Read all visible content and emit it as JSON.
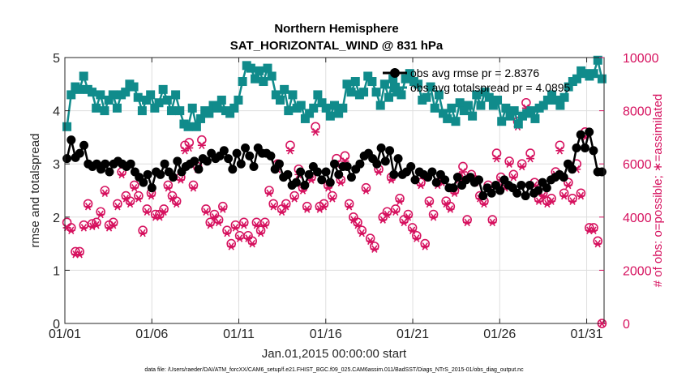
{
  "chart_data": {
    "type": "line",
    "title": "Northern Hemisphere",
    "subtitle": "SAT_HORIZONTAL_WIND @ 831 hPa",
    "xlabel": "Jan.01,2015 00:00:00 start",
    "ylabel": "rmse and totalspread",
    "y2label": "# of obs: o=possible; ∗=assimilated",
    "xlim": [
      0,
      31
    ],
    "ylim": [
      0,
      5
    ],
    "y2lim": [
      0,
      10000
    ],
    "x_tick_values": [
      0,
      5,
      10,
      15,
      20,
      25,
      30
    ],
    "x_tick_labels": [
      "01/01",
      "01/06",
      "01/11",
      "01/16",
      "01/21",
      "01/26",
      "01/31"
    ],
    "y_ticks": [
      "0",
      "1",
      "2",
      "3",
      "4",
      "5"
    ],
    "y2_ticks": [
      "0",
      "2000",
      "4000",
      "6000",
      "8000",
      "10000"
    ],
    "legend_location": "top-right",
    "footnote": "data file: /Users/raeder/DAI/ATM_forcXX/CAM6_setup/f.e21.FHIST_BGC.f09_025.CAM6assim.011/BadSST/Diags_NTrS_2015-01/obs_diag_output.nc",
    "colors": {
      "rmse": "#000000",
      "spread": "#108b8b",
      "obs": "#d6125f"
    },
    "series": [
      {
        "name": "obs avg rmse pr = 2.8376",
        "axis": "left",
        "values": [
          3.1,
          3.45,
          3.12,
          3.2,
          3.35,
          3.0,
          2.95,
          3.0,
          2.9,
          3.0,
          2.85,
          3.0,
          3.05,
          3.0,
          2.95,
          3.0,
          2.85,
          2.75,
          2.65,
          2.8,
          2.55,
          2.85,
          2.8,
          3.0,
          2.85,
          2.75,
          3.05,
          2.85,
          2.95,
          3.0,
          3.05,
          2.9,
          3.1,
          3.05,
          3.2,
          3.1,
          3.15,
          3.25,
          3.1,
          2.9,
          3.2,
          3.0,
          3.3,
          3.15,
          2.95,
          3.3,
          3.2,
          3.2,
          3.15,
          2.9,
          3.0,
          2.75,
          2.8,
          2.6,
          2.65,
          2.85,
          2.6,
          2.8,
          2.95,
          2.85,
          2.7,
          2.85,
          2.65,
          3.0,
          2.8,
          2.95,
          2.95,
          2.75,
          2.9,
          3.0,
          3.15,
          3.2,
          3.1,
          3.0,
          3.3,
          3.05,
          3.25,
          2.8,
          3.1,
          2.8,
          2.85,
          2.95,
          2.7,
          2.85,
          2.8,
          2.75,
          2.85,
          2.65,
          2.8,
          2.7,
          2.55,
          2.55,
          2.75,
          2.6,
          2.7,
          2.75,
          2.65,
          2.7,
          2.4,
          2.55,
          2.45,
          2.6,
          2.5,
          2.7,
          2.6,
          2.55,
          2.45,
          2.6,
          2.4,
          2.6,
          2.45,
          2.5,
          2.65,
          2.55,
          2.7,
          2.75,
          2.8,
          2.75,
          3.0,
          2.9,
          3.3,
          3.55,
          3.3,
          3.6,
          3.25,
          2.85,
          2.85
        ]
      },
      {
        "name": "obs avg totalspread pr = 4.0895",
        "axis": "left",
        "values": [
          3.7,
          4.3,
          4.45,
          4.4,
          4.65,
          4.4,
          4.35,
          4.05,
          4.3,
          4.0,
          4.2,
          4.3,
          4.05,
          4.3,
          4.35,
          4.5,
          4.45,
          4.25,
          4.0,
          4.2,
          4.3,
          4.05,
          4.15,
          4.4,
          4.2,
          4.0,
          4.3,
          4.0,
          3.75,
          3.7,
          4.05,
          3.7,
          3.85,
          4.0,
          3.95,
          4.1,
          4.05,
          4.2,
          4.0,
          3.95,
          4.05,
          4.2,
          4.55,
          4.85,
          4.8,
          4.6,
          4.75,
          4.55,
          4.8,
          4.65,
          4.3,
          4.2,
          4.4,
          4.0,
          4.3,
          4.05,
          4.1,
          3.85,
          3.95,
          4.05,
          4.3,
          4.15,
          4.05,
          3.9,
          4.1,
          3.95,
          4.05,
          4.5,
          4.35,
          4.55,
          4.3,
          4.35,
          4.65,
          4.55,
          4.35,
          4.1,
          4.5,
          4.25,
          4.6,
          4.35,
          4.3,
          4.6,
          4.7,
          4.55,
          4.5,
          4.2,
          4.25,
          4.45,
          4.05,
          4.3,
          3.95,
          3.85,
          4.05,
          3.8,
          4.15,
          4.0,
          4.1,
          3.9,
          4.3,
          4.1,
          4.35,
          4.25,
          4.1,
          4.2,
          3.8,
          4.05,
          3.9,
          4.0,
          3.75,
          3.9,
          3.95,
          4.0,
          3.85,
          4.05,
          4.1,
          4.2,
          4.3,
          4.2,
          4.1,
          4.25,
          4.45,
          4.55,
          4.6,
          4.75,
          4.7,
          4.65,
          4.7,
          4.95,
          4.6
        ]
      },
      {
        "name": "possible",
        "axis": "right",
        "values": [
          3800,
          3600,
          2700,
          2700,
          3700,
          4500,
          3750,
          3800,
          4200,
          5000,
          3700,
          3800,
          4500,
          5700,
          4800,
          4600,
          5200,
          4800,
          3500,
          4300,
          4900,
          4100,
          4100,
          4300,
          5200,
          4800,
          4600,
          5500,
          6700,
          6800,
          5200,
          5900,
          6900,
          4300,
          3800,
          4100,
          3900,
          4400,
          3500,
          3000,
          3700,
          3300,
          3800,
          3300,
          3100,
          3800,
          3500,
          3800,
          5000,
          4500,
          6000,
          4300,
          4500,
          6700,
          4800,
          5800,
          5100,
          4400,
          5500,
          7400,
          4400,
          4500,
          5200,
          4800,
          6200,
          5400,
          6300,
          4500,
          4000,
          3800,
          3500,
          5100,
          3200,
          2900,
          5800,
          4000,
          4200,
          5500,
          4300,
          4700,
          3900,
          4100,
          3600,
          3300,
          5300,
          3000,
          4600,
          4100,
          5300,
          5400,
          4600,
          4400,
          5000,
          5500,
          5900,
          3900,
          5600,
          5400,
          4800,
          4600,
          5200,
          3900,
          6400,
          5500,
          5200,
          6100,
          5600,
          7600,
          6000,
          8300,
          6400,
          5300,
          4700,
          4900,
          4600,
          4700,
          5700,
          6700,
          4900,
          5300,
          4700,
          6000,
          4900,
          7200,
          3600,
          3600,
          3100,
          0
        ]
      },
      {
        "name": "assimilated",
        "axis": "right",
        "values": [
          3600,
          3500,
          2600,
          2600,
          3600,
          4400,
          3650,
          3700,
          4100,
          4900,
          3600,
          3700,
          4400,
          5600,
          4700,
          4500,
          5100,
          4700,
          3400,
          4200,
          4800,
          4000,
          4000,
          4200,
          5100,
          4700,
          4500,
          5400,
          6500,
          6600,
          5100,
          5800,
          6700,
          4200,
          3700,
          4000,
          3800,
          4300,
          3400,
          2900,
          3600,
          3200,
          3700,
          3200,
          3000,
          3700,
          3400,
          3700,
          4900,
          4400,
          5800,
          4200,
          4400,
          6500,
          4700,
          5600,
          5000,
          4300,
          5400,
          7200,
          4300,
          4400,
          5100,
          4700,
          6000,
          5300,
          6100,
          4400,
          3900,
          3700,
          3400,
          5000,
          3100,
          2800,
          5700,
          3900,
          4100,
          5400,
          4200,
          4600,
          3800,
          4000,
          3500,
          3200,
          5200,
          2900,
          4500,
          4000,
          5200,
          5300,
          4500,
          4300,
          4900,
          5400,
          5700,
          3800,
          5500,
          5300,
          4700,
          4500,
          5100,
          3800,
          6200,
          5400,
          5100,
          6000,
          5500,
          7400,
          5900,
          8100,
          6200,
          5200,
          4600,
          4800,
          4500,
          4600,
          5600,
          6500,
          4800,
          5200,
          4600,
          5800,
          4800,
          7000,
          3500,
          3500,
          3000,
          0
        ]
      }
    ]
  }
}
